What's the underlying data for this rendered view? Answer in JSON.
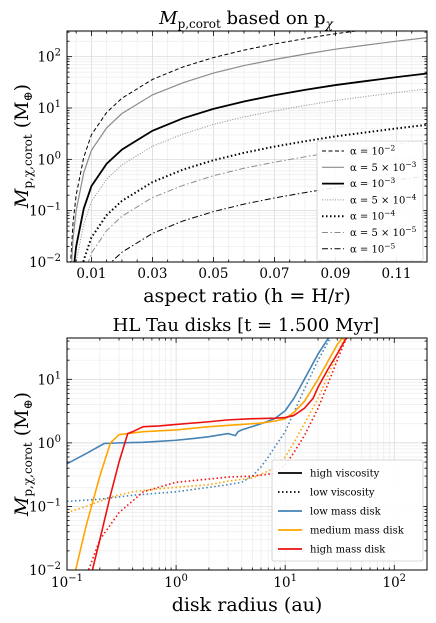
{
  "chart_data": [
    {
      "type": "line",
      "title_main": "M",
      "title_sub": "p,corot",
      "title_rest": " based on p",
      "title_rest_sub": "χ",
      "xlabel": "aspect ratio (h = H/r)",
      "ylabel_main": "M",
      "ylabel_sub": "p,χ,corot",
      "ylabel_unit": " (M",
      "ylabel_unit_sub": "⊕",
      "ylabel_close": ")",
      "xlim": [
        0.002,
        0.12
      ],
      "ylim_log10": [
        -2,
        2.5
      ],
      "yscale": "log",
      "grid": true,
      "x_ticks": [
        0.01,
        0.03,
        0.05,
        0.07,
        0.09,
        0.11
      ],
      "x_tick_labels": [
        "0.01",
        "0.03",
        "0.05",
        "0.07",
        "0.09",
        "0.11"
      ],
      "y_ticks_log10": [
        -2,
        -1,
        0,
        1,
        2
      ],
      "y_tick_base": "10",
      "y_tick_exps": [
        "−2",
        "−1",
        "0",
        "1",
        "2"
      ],
      "legend_position": "lower-right",
      "series": [
        {
          "name": "α = 10",
          "name_sup": "−2",
          "style": "dashed",
          "color": "#000000",
          "width": 1.0,
          "alpha": 0.01,
          "h": [
            0.003,
            0.004,
            0.005,
            0.0075,
            0.01,
            0.015,
            0.02,
            0.03,
            0.04,
            0.05,
            0.06,
            0.07,
            0.08,
            0.09,
            0.1,
            0.11,
            0.12
          ],
          "y": [
            0.0065,
            0.06,
            0.2,
            1.1,
            3.0,
            8.2,
            15.5,
            36,
            63,
            96,
            134,
            177,
            225,
            280,
            335,
            400,
            470
          ]
        },
        {
          "name": "α = 5 × 10",
          "name_sup": "−3",
          "style": "solid",
          "color": "#8c8c8c",
          "width": 1.2,
          "alpha": 0.005,
          "h": [
            0.003,
            0.004,
            0.005,
            0.0075,
            0.01,
            0.015,
            0.02,
            0.03,
            0.04,
            0.05,
            0.06,
            0.07,
            0.08,
            0.09,
            0.1,
            0.11,
            0.12
          ],
          "y": [
            0.003,
            0.03,
            0.1,
            0.55,
            1.5,
            4.1,
            7.8,
            18,
            31,
            48,
            67,
            88,
            112,
            140,
            168,
            200,
            235
          ]
        },
        {
          "name": "α = 10",
          "name_sup": "−3",
          "style": "solid",
          "color": "#000000",
          "width": 1.8,
          "alpha": 0.001,
          "h": [
            0.003,
            0.004,
            0.005,
            0.0075,
            0.01,
            0.015,
            0.02,
            0.03,
            0.04,
            0.05,
            0.06,
            0.07,
            0.08,
            0.09,
            0.1,
            0.11,
            0.12
          ],
          "y": [
            0.0006,
            0.006,
            0.02,
            0.11,
            0.3,
            0.82,
            1.55,
            3.6,
            6.3,
            9.6,
            13.4,
            17.7,
            22.5,
            28,
            33.5,
            40,
            47
          ]
        },
        {
          "name": "α = 5 × 10",
          "name_sup": "−4",
          "style": "dotted-fine",
          "color": "#8c8c8c",
          "width": 1.0,
          "alpha": 0.0005,
          "h": [
            0.004,
            0.005,
            0.0075,
            0.01,
            0.015,
            0.02,
            0.03,
            0.04,
            0.05,
            0.06,
            0.07,
            0.08,
            0.09,
            0.1,
            0.11,
            0.12
          ],
          "y": [
            0.003,
            0.01,
            0.055,
            0.15,
            0.41,
            0.78,
            1.8,
            3.1,
            4.8,
            6.7,
            8.8,
            11.2,
            14,
            16.8,
            20,
            23.5
          ]
        },
        {
          "name": "α = 10",
          "name_sup": "−4",
          "style": "dotted",
          "color": "#000000",
          "width": 2.0,
          "alpha": 0.0001,
          "h": [
            0.004,
            0.005,
            0.0075,
            0.01,
            0.015,
            0.02,
            0.03,
            0.04,
            0.05,
            0.06,
            0.07,
            0.08,
            0.09,
            0.1,
            0.11,
            0.12
          ],
          "y": [
            0.0006,
            0.002,
            0.011,
            0.03,
            0.082,
            0.155,
            0.36,
            0.63,
            0.96,
            1.34,
            1.77,
            2.25,
            2.8,
            3.35,
            4.0,
            4.7
          ]
        },
        {
          "name": "α = 5 × 10",
          "name_sup": "−5",
          "style": "dashdot",
          "color": "#8c8c8c",
          "width": 1.0,
          "alpha": 5e-05,
          "h": [
            0.005,
            0.0075,
            0.01,
            0.015,
            0.02,
            0.03,
            0.04,
            0.05,
            0.06,
            0.07,
            0.08,
            0.09,
            0.1,
            0.11,
            0.12
          ],
          "y": [
            0.001,
            0.0055,
            0.015,
            0.041,
            0.078,
            0.18,
            0.31,
            0.48,
            0.67,
            0.88,
            1.12,
            1.4,
            1.68,
            2.0,
            2.35
          ]
        },
        {
          "name": "α = 10",
          "name_sup": "−5",
          "style": "dashdot",
          "color": "#000000",
          "width": 1.0,
          "alpha": 1e-05,
          "h": [
            0.0075,
            0.01,
            0.015,
            0.02,
            0.03,
            0.04,
            0.05,
            0.06,
            0.07,
            0.08,
            0.09,
            0.1,
            0.11,
            0.12
          ],
          "y": [
            0.0011,
            0.003,
            0.0082,
            0.0155,
            0.036,
            0.063,
            0.096,
            0.134,
            0.177,
            0.225,
            0.28,
            0.335,
            0.4,
            0.47
          ]
        }
      ]
    },
    {
      "type": "line",
      "title": "HL Tau disks [t = 1.500 Myr]",
      "xlabel": "disk radius (au)",
      "ylabel_main": "M",
      "ylabel_sub": "p,χ,corot",
      "ylabel_unit": " (M",
      "ylabel_unit_sub": "⊕",
      "ylabel_close": ")",
      "xscale": "log",
      "yscale": "log",
      "xlim_log10": [
        -1,
        2.3
      ],
      "ylim_log10": [
        -2,
        1.65
      ],
      "grid": true,
      "x_ticks_log10": [
        -1,
        0,
        1,
        2
      ],
      "x_tick_base": "10",
      "x_tick_exps": [
        "−1",
        "0",
        "1",
        "2"
      ],
      "y_ticks_log10": [
        -2,
        -1,
        0,
        1
      ],
      "y_tick_base": "10",
      "y_tick_exps": [
        "−2",
        "−1",
        "0",
        "1"
      ],
      "legend_position": "lower-right",
      "legend": [
        {
          "name": "high viscosity",
          "style": "solid",
          "color": "#000000"
        },
        {
          "name": "low viscosity",
          "style": "dotted",
          "color": "#000000"
        },
        {
          "name": "low mass disk",
          "style": "solid",
          "color": "#4682b4"
        },
        {
          "name": "medium mass disk",
          "style": "solid",
          "color": "#ffa500"
        },
        {
          "name": "high mass disk",
          "style": "solid",
          "color": "#ee1111"
        }
      ],
      "series": [
        {
          "name": "low mass disk",
          "viscosity": "high",
          "style": "solid",
          "color": "#4682b4",
          "x": [
            0.1,
            0.15,
            0.22,
            0.3,
            0.5,
            1,
            1.5,
            2,
            3,
            3.5,
            3.7,
            4,
            6,
            8,
            10,
            12,
            15,
            20,
            25,
            28,
            30
          ],
          "y": [
            0.47,
            0.68,
            0.98,
            1.0,
            1.02,
            1.1,
            1.18,
            1.25,
            1.4,
            1.3,
            1.5,
            1.6,
            2.0,
            2.4,
            3.2,
            5.0,
            10,
            25,
            45,
            55,
            60
          ]
        },
        {
          "name": "low mass disk",
          "viscosity": "low",
          "style": "dotted",
          "color": "#4682b4",
          "x": [
            0.1,
            0.2,
            0.4,
            1,
            2,
            3,
            4,
            5,
            6,
            7,
            8,
            10,
            12,
            15,
            20,
            25,
            28,
            30
          ],
          "y": [
            0.12,
            0.13,
            0.15,
            0.17,
            0.2,
            0.22,
            0.24,
            0.3,
            0.42,
            0.6,
            0.85,
            1.5,
            3.0,
            7.0,
            20,
            40,
            55,
            60
          ]
        },
        {
          "name": "medium mass disk",
          "viscosity": "high",
          "style": "solid",
          "color": "#ffa500",
          "x": [
            0.12,
            0.15,
            0.2,
            0.25,
            0.3,
            0.5,
            1,
            2,
            4,
            6,
            8,
            10,
            12,
            15,
            20,
            25,
            30,
            35,
            40
          ],
          "y": [
            0.01,
            0.05,
            0.3,
            1.0,
            1.35,
            1.5,
            1.6,
            1.8,
            1.95,
            2.05,
            2.2,
            2.4,
            3.0,
            4.5,
            10,
            20,
            35,
            50,
            60
          ]
        },
        {
          "name": "medium mass disk",
          "viscosity": "low",
          "style": "dotted",
          "color": "#ffa500",
          "x": [
            0.1,
            0.15,
            0.25,
            0.4,
            0.7,
            1,
            2,
            3,
            5,
            8,
            10,
            12,
            15,
            20,
            25,
            30,
            35,
            40
          ],
          "y": [
            0.08,
            0.1,
            0.14,
            0.17,
            0.19,
            0.2,
            0.22,
            0.25,
            0.28,
            0.4,
            0.6,
            1.0,
            2.0,
            5.0,
            12,
            25,
            45,
            60
          ]
        },
        {
          "name": "high mass disk",
          "viscosity": "high",
          "style": "solid",
          "color": "#ee1111",
          "x": [
            0.15,
            0.2,
            0.25,
            0.3,
            0.36,
            0.4,
            0.5,
            0.7,
            1,
            2,
            3,
            5,
            8,
            10,
            12,
            15,
            18,
            20,
            25,
            30,
            35,
            40
          ],
          "y": [
            0.004,
            0.03,
            0.15,
            0.5,
            1.4,
            1.5,
            1.8,
            1.85,
            1.95,
            2.15,
            2.3,
            2.4,
            2.45,
            2.5,
            2.7,
            3.5,
            5.0,
            7.5,
            15,
            25,
            40,
            60
          ]
        },
        {
          "name": "high mass disk",
          "viscosity": "low",
          "style": "dotted",
          "color": "#ee1111",
          "x": [
            0.12,
            0.15,
            0.2,
            0.3,
            0.5,
            1,
            2,
            3,
            5,
            8,
            10,
            12,
            15,
            20,
            25,
            30,
            35,
            40
          ],
          "y": [
            0.003,
            0.008,
            0.03,
            0.08,
            0.17,
            0.24,
            0.27,
            0.29,
            0.3,
            0.33,
            0.45,
            0.7,
            1.3,
            3.5,
            9,
            20,
            38,
            60
          ]
        }
      ]
    }
  ]
}
